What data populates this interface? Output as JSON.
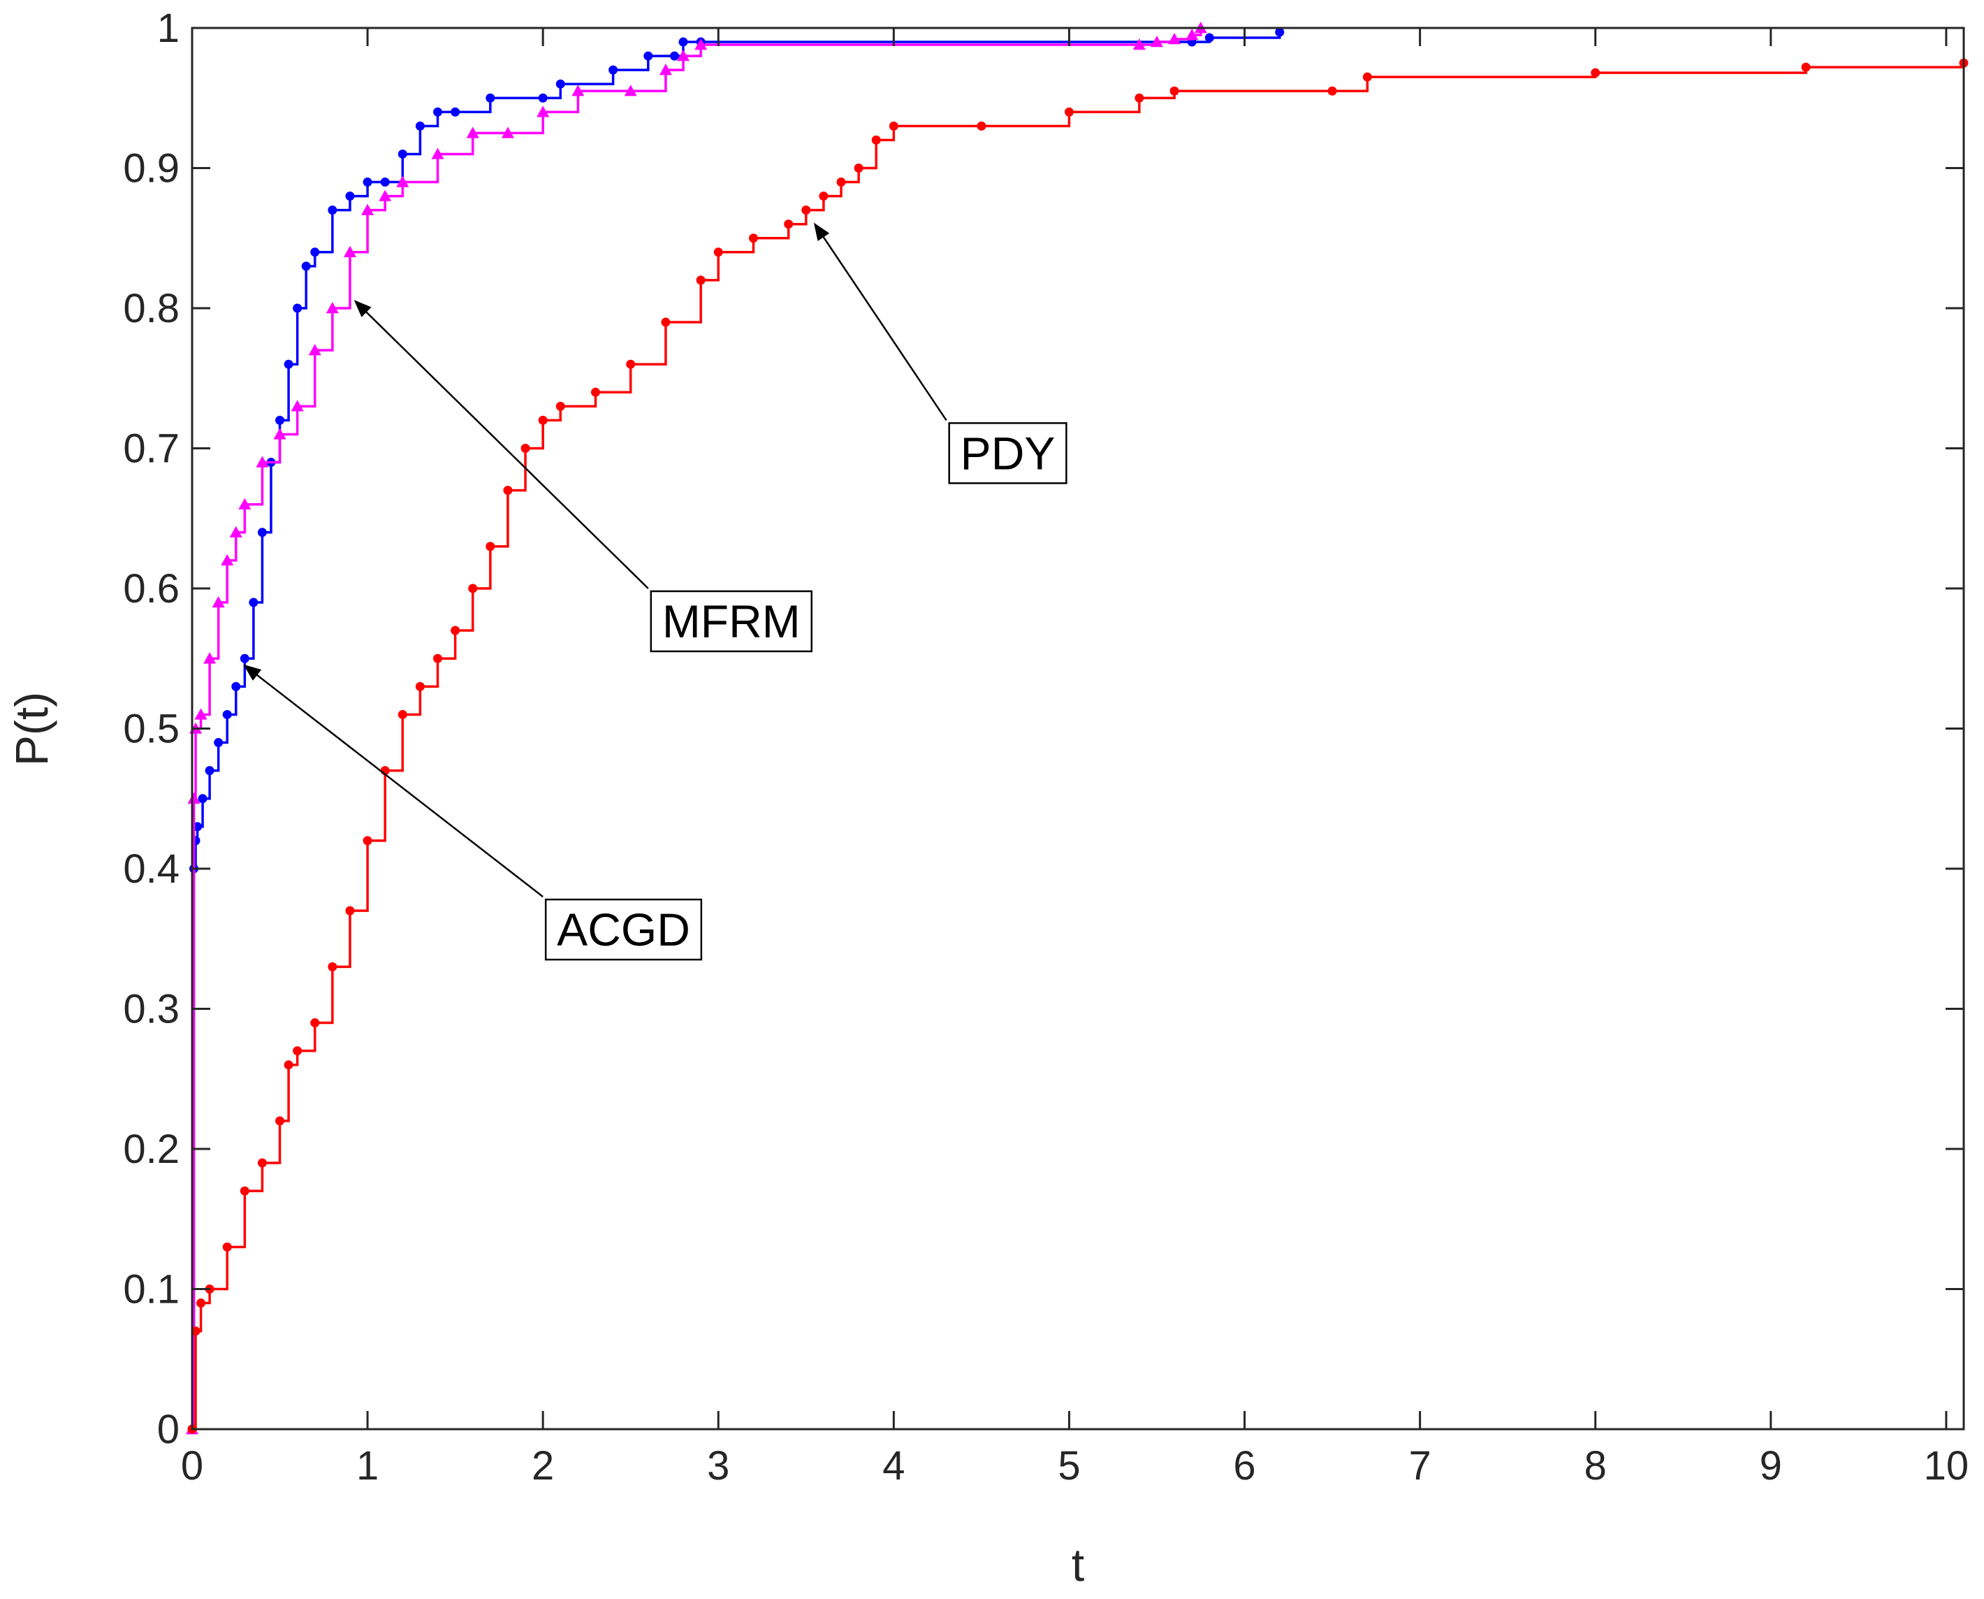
{
  "chart_data": {
    "type": "line",
    "title": "",
    "xlabel": "t",
    "ylabel": "P(t)",
    "xlim": [
      0,
      10.1
    ],
    "ylim": [
      0,
      1
    ],
    "xticks": [
      0,
      1,
      2,
      3,
      4,
      5,
      6,
      7,
      8,
      9,
      10
    ],
    "yticks": [
      0,
      0.1,
      0.2,
      0.3,
      0.4,
      0.5,
      0.6,
      0.7,
      0.8,
      0.9,
      1
    ],
    "xtick_labels": [
      "0",
      "1",
      "2",
      "3",
      "4",
      "5",
      "6",
      "7",
      "8",
      "9",
      "10"
    ],
    "ytick_labels": [
      "0",
      "0.1",
      "0.2",
      "0.3",
      "0.4",
      "0.5",
      "0.6",
      "0.7",
      "0.8",
      "0.9",
      "1"
    ],
    "grid": false,
    "legend": "none",
    "series": [
      {
        "name": "ACGD",
        "color": "#0000ff",
        "marker": "dot",
        "x": [
          0,
          0.01,
          0.02,
          0.03,
          0.06,
          0.1,
          0.15,
          0.2,
          0.25,
          0.3,
          0.35,
          0.4,
          0.45,
          0.5,
          0.55,
          0.6,
          0.65,
          0.7,
          0.8,
          0.9,
          1.0,
          1.1,
          1.2,
          1.3,
          1.4,
          1.5,
          1.7,
          2.0,
          2.1,
          2.4,
          2.6,
          2.75,
          2.8,
          2.9,
          5.7,
          5.8,
          6.2
        ],
        "y": [
          0,
          0.4,
          0.42,
          0.43,
          0.45,
          0.47,
          0.49,
          0.51,
          0.53,
          0.55,
          0.59,
          0.64,
          0.69,
          0.72,
          0.76,
          0.8,
          0.83,
          0.84,
          0.87,
          0.88,
          0.89,
          0.89,
          0.91,
          0.93,
          0.94,
          0.94,
          0.95,
          0.95,
          0.96,
          0.97,
          0.98,
          0.98,
          0.99,
          0.99,
          0.99,
          0.993,
          0.997
        ]
      },
      {
        "name": "MFRM",
        "color": "#ff00ff",
        "marker": "triangle",
        "x": [
          0,
          0.01,
          0.02,
          0.05,
          0.1,
          0.15,
          0.2,
          0.25,
          0.3,
          0.4,
          0.5,
          0.6,
          0.7,
          0.8,
          0.9,
          1.0,
          1.1,
          1.2,
          1.4,
          1.6,
          1.8,
          2.0,
          2.2,
          2.5,
          2.7,
          2.8,
          2.9,
          5.4,
          5.5,
          5.6,
          5.7,
          5.75
        ],
        "y": [
          0,
          0.45,
          0.5,
          0.51,
          0.55,
          0.59,
          0.62,
          0.64,
          0.66,
          0.69,
          0.71,
          0.73,
          0.77,
          0.8,
          0.84,
          0.87,
          0.88,
          0.89,
          0.91,
          0.925,
          0.925,
          0.94,
          0.955,
          0.955,
          0.97,
          0.98,
          0.988,
          0.988,
          0.99,
          0.992,
          0.995,
          1.0
        ]
      },
      {
        "name": "PDY",
        "color": "#ff0000",
        "marker": "dot",
        "x": [
          0,
          0.02,
          0.05,
          0.1,
          0.2,
          0.3,
          0.4,
          0.5,
          0.55,
          0.6,
          0.7,
          0.8,
          0.9,
          1.0,
          1.1,
          1.2,
          1.3,
          1.4,
          1.5,
          1.6,
          1.7,
          1.8,
          1.9,
          2.0,
          2.1,
          2.3,
          2.5,
          2.7,
          2.9,
          3.0,
          3.2,
          3.4,
          3.5,
          3.6,
          3.7,
          3.8,
          3.9,
          4.0,
          4.5,
          5.0,
          5.4,
          5.6,
          6.5,
          6.7,
          8.0,
          9.2,
          10.1
        ],
        "y": [
          0,
          0.07,
          0.09,
          0.1,
          0.13,
          0.17,
          0.19,
          0.22,
          0.26,
          0.27,
          0.29,
          0.33,
          0.37,
          0.42,
          0.47,
          0.51,
          0.53,
          0.55,
          0.57,
          0.6,
          0.63,
          0.67,
          0.7,
          0.72,
          0.73,
          0.74,
          0.76,
          0.79,
          0.82,
          0.84,
          0.85,
          0.86,
          0.87,
          0.88,
          0.89,
          0.9,
          0.92,
          0.93,
          0.93,
          0.94,
          0.95,
          0.955,
          0.955,
          0.965,
          0.968,
          0.972,
          0.975
        ]
      }
    ],
    "annotations": [
      {
        "text": "ACGD",
        "series": "ACGD",
        "arrow_to": [
          0.3,
          0.545
        ],
        "label_at": [
          2.0,
          0.38
        ]
      },
      {
        "text": "MFRM",
        "series": "MFRM",
        "arrow_to": [
          0.93,
          0.805
        ],
        "label_at": [
          2.6,
          0.6
        ]
      },
      {
        "text": "PDY",
        "series": "PDY",
        "arrow_to": [
          3.55,
          0.86
        ],
        "label_at": [
          4.3,
          0.72
        ]
      }
    ]
  }
}
